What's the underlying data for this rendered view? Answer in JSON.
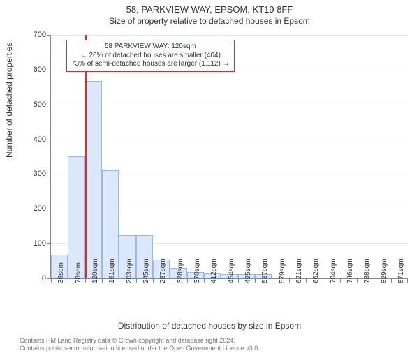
{
  "title_main": "58, PARKVIEW WAY, EPSOM, KT19 8FF",
  "title_sub": "Size of property relative to detached houses in Epsom",
  "ylabel": "Number of detached properties",
  "xlabel": "Distribution of detached houses by size in Epsom",
  "y": {
    "min": 0,
    "max": 700,
    "ticks": [
      0,
      100,
      200,
      300,
      400,
      500,
      600,
      700
    ]
  },
  "x": {
    "labels": [
      "36sqm",
      "78sqm",
      "120sqm",
      "161sqm",
      "203sqm",
      "245sqm",
      "287sqm",
      "328sqm",
      "370sqm",
      "412sqm",
      "454sqm",
      "495sqm",
      "537sqm",
      "579sqm",
      "621sqm",
      "662sqm",
      "704sqm",
      "746sqm",
      "788sqm",
      "829sqm",
      "871sqm"
    ]
  },
  "histogram": {
    "type": "histogram",
    "bar_fill": "#dbe8fb",
    "bar_stroke": "#9db9e0",
    "values": [
      68,
      352,
      568,
      310,
      125,
      125,
      55,
      30,
      18,
      14,
      12,
      12,
      12,
      0,
      0,
      0,
      0,
      0,
      0,
      0,
      0
    ]
  },
  "marker": {
    "color": "#cc3333",
    "position_index": 2.02
  },
  "annotation": {
    "border_color": "#cc3333",
    "bg": "#ffffff",
    "lines": [
      "58 PARKVIEW WAY: 120sqm",
      "← 26% of detached houses are smaller (404)",
      "73% of semi-detached houses are larger (1,112) →"
    ]
  },
  "footer": {
    "line1": "Contains HM Land Registry data © Crown copyright and database right 2024.",
    "line2": "Contains public sector information licensed under the Open Government Licence v3.0."
  },
  "colors": {
    "grid": "#e8e8e8",
    "axis": "#888888",
    "text": "#333333",
    "background": "#ffffff"
  },
  "fonts": {
    "title": 13,
    "subtitle": 12,
    "axis_label": 12,
    "tick": 11,
    "xtick": 10,
    "annotation": 10,
    "footer": 9
  }
}
